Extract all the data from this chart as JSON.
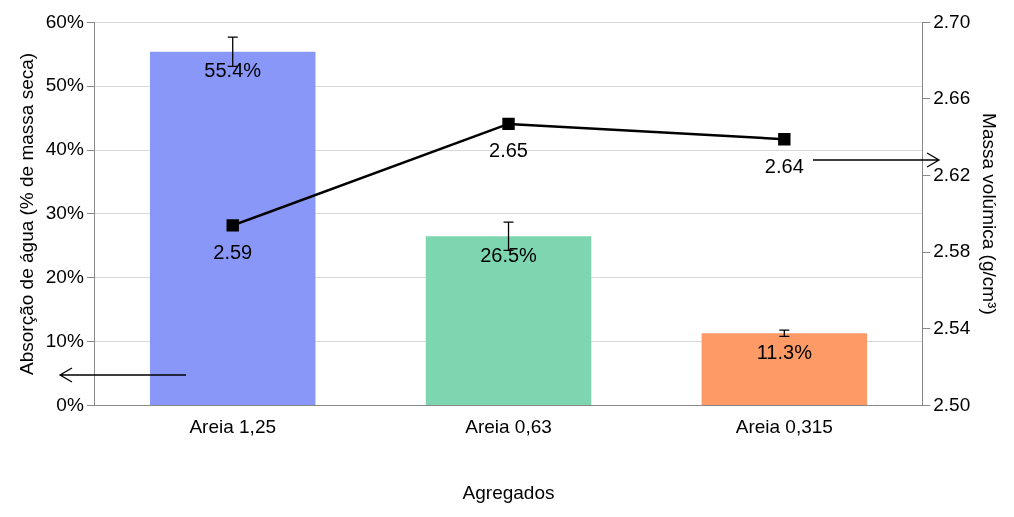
{
  "chart_data": {
    "type": "bar",
    "xlabel": "Agregados",
    "ylabel": "Absorção de água (% de massa seca)",
    "y2label": "Massa volúmica (g/cm³)",
    "categories": [
      "Areia 1,25",
      "Areia 0,63",
      "Areia 0,315"
    ],
    "series": [
      {
        "colors": [
          "#8897f8",
          "#7dd6b0",
          "#fe9a66"
        ],
        "values": [
          55.4,
          26.5,
          11.3
        ],
        "errors": [
          2.3,
          2.2,
          0.5
        ],
        "value_labels": [
          "55.4%",
          "26.5%",
          "11.3%"
        ]
      },
      {
        "type": "line",
        "axis": "y2",
        "color": "#000000",
        "values": [
          2.594,
          2.647,
          2.639
        ],
        "value_labels": [
          "2.59",
          "2.65",
          "2.64"
        ],
        "marker": "square",
        "line_style": "solid"
      }
    ],
    "ylim": [
      0,
      60
    ],
    "yticks": [
      {
        "value": 0,
        "label": "0%"
      },
      {
        "value": 10,
        "label": "10%"
      },
      {
        "value": 20,
        "label": "20%"
      },
      {
        "value": 30,
        "label": "30%"
      },
      {
        "value": 40,
        "label": "40%"
      },
      {
        "value": 50,
        "label": "50%"
      },
      {
        "value": 60,
        "label": "60%"
      }
    ],
    "y2lim": [
      2.5,
      2.7
    ],
    "y2ticks": [
      {
        "value": 2.5,
        "label": "2.50"
      },
      {
        "value": 2.54,
        "label": "2.54"
      },
      {
        "value": 2.58,
        "label": "2.58"
      },
      {
        "value": 2.62,
        "label": "2.62"
      },
      {
        "value": 2.66,
        "label": "2.66"
      },
      {
        "value": 2.7,
        "label": "2.70"
      }
    ],
    "grid": "y",
    "legend": false
  }
}
